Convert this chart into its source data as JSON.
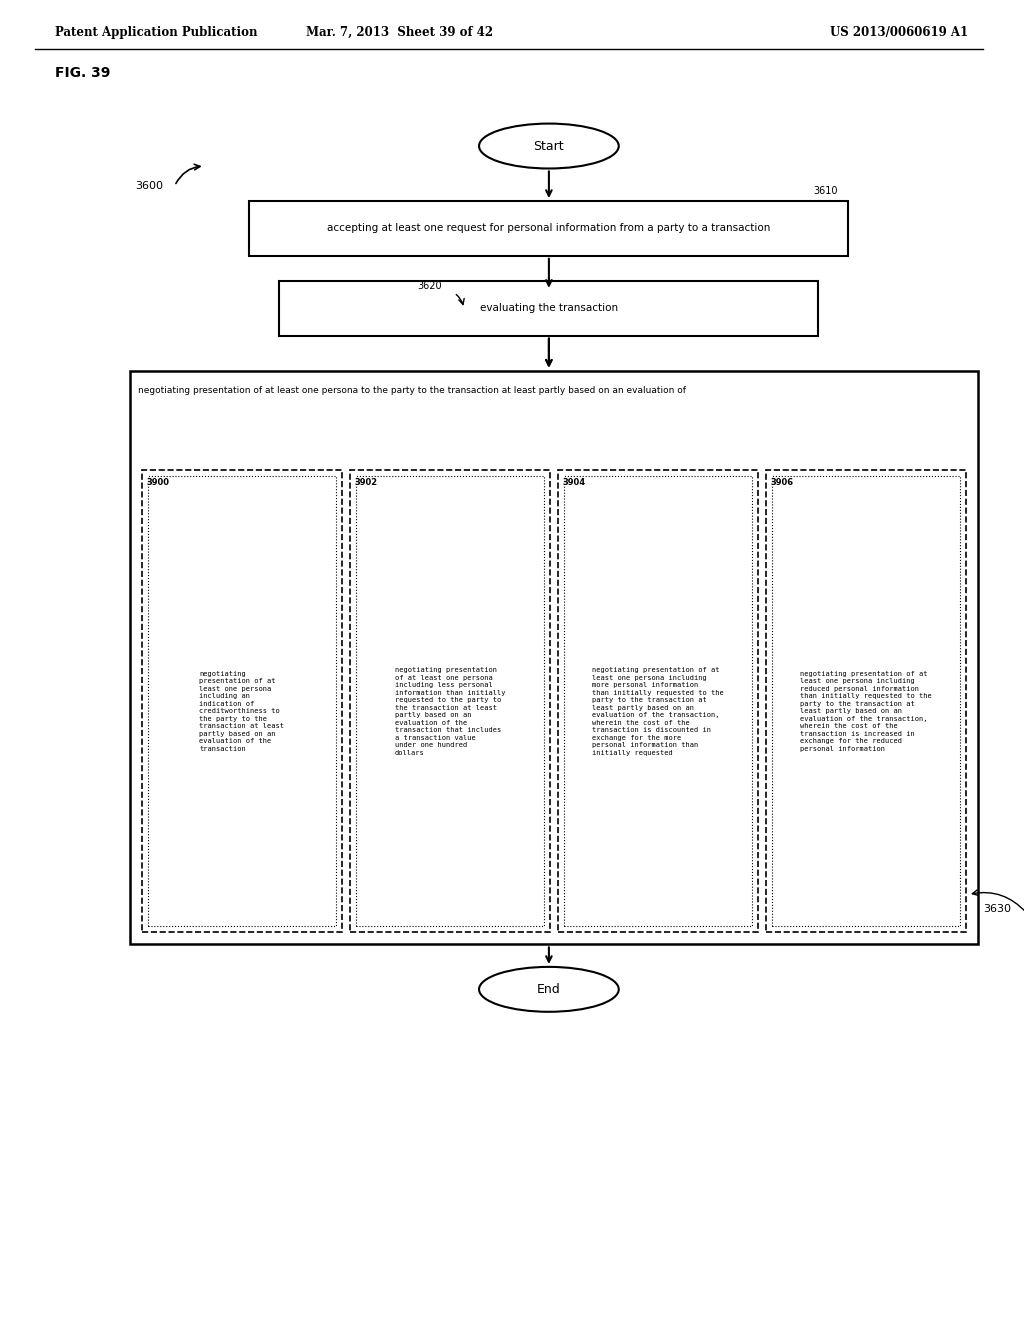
{
  "header_left": "Patent Application Publication",
  "header_center": "Mar. 7, 2013  Sheet 39 of 42",
  "header_right": "US 2013/0060619 A1",
  "fig_label": "FIG. 39",
  "flow_label": "3600",
  "box3610_label": "3610",
  "box3610_text": "accepting at least one request for personal information from a party to a transaction",
  "box3620_label": "3620",
  "box3620_text": "evaluating the transaction",
  "box3630_label": "3630",
  "box3630_outer_text": "negotiating presentation of at least one persona to the party to the transaction at least partly based on an evaluation of",
  "box3900_label": "3900",
  "box3900_text": "negotiating\npresentation of at\nleast one persona\nincluding an\nindication of\ncreditworthiness to\nthe party to the\ntransaction at least\npartly based on an\nevaluation of the\ntransaction",
  "box3902_label": "3902",
  "box3902_text": "negotiating presentation\nof at least one persona\nincluding less personal\ninformation than initially\nrequested to the party to\nthe transaction at least\npartly based on an\nevaluation of the\ntransaction that includes\na transaction value\nunder one hundred\ndollars",
  "box3904_label": "3904",
  "box3904_text": "negotiating presentation of at\nleast one persona including\nmore personal information\nthan initially requested to the\nparty to the transaction at\nleast partly based on an\nevaluation of the transaction,\nwherein the cost of the\ntransaction is discounted in\nexchange for the more\npersonal information than\ninitially requested",
  "box3906_label": "3906",
  "box3906_text": "negotiating presentation of at\nleast one persona including\nreduced personal information\nthan initially requested to the\nparty to the transaction at\nleast partly based on an\nevaluation of the transaction,\nwherein the cost of the\ntransaction is increased in\nexchange for the reduced\npersonal information",
  "bg_color": "#ffffff",
  "box_color": "#000000",
  "text_color": "#000000"
}
